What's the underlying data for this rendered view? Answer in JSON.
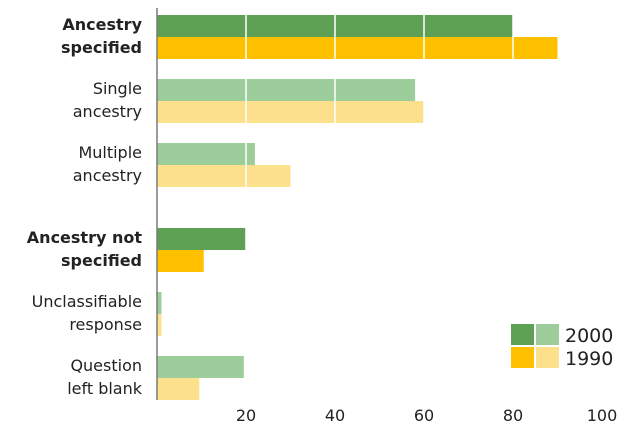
{
  "chart_data": {
    "type": "bar",
    "orientation": "horizontal",
    "grid": "white gridlines drawn over the bars",
    "legend_position": "bottom-right",
    "categories": [
      {
        "label": "Ancestry specified",
        "lines": [
          "Ancestry",
          "specified"
        ],
        "bold": true,
        "dark": true
      },
      {
        "label": "Single ancestry",
        "lines": [
          "Single",
          "ancestry"
        ],
        "bold": false,
        "dark": false
      },
      {
        "label": "Multiple ancestry",
        "lines": [
          "Multiple",
          "ancestry"
        ],
        "bold": false,
        "dark": false
      },
      {
        "label": "Ancestry not specified",
        "lines": [
          "Ancestry not",
          "specified"
        ],
        "bold": true,
        "dark": true
      },
      {
        "label": "Unclassifiable response",
        "lines": [
          "Unclassifiable",
          "response"
        ],
        "bold": false,
        "dark": false
      },
      {
        "label": "Question left blank",
        "lines": [
          "Question",
          "left blank"
        ],
        "bold": false,
        "dark": false
      }
    ],
    "series": [
      {
        "name": "2000",
        "values": [
          80,
          58,
          22,
          20,
          1,
          19.5
        ]
      },
      {
        "name": "1990",
        "values": [
          90,
          60,
          30,
          10.5,
          1,
          9.5
        ]
      }
    ],
    "xlim": [
      0,
      100
    ],
    "xticks": [
      20,
      40,
      60,
      80,
      100
    ],
    "colors": {
      "2000_dark": "#5fa154",
      "2000_light": "#9ccd9a",
      "1990_dark": "#ffc000",
      "1990_light": "#fde08c",
      "axis": "#7a7a7a",
      "grid": "#ffffff"
    }
  }
}
